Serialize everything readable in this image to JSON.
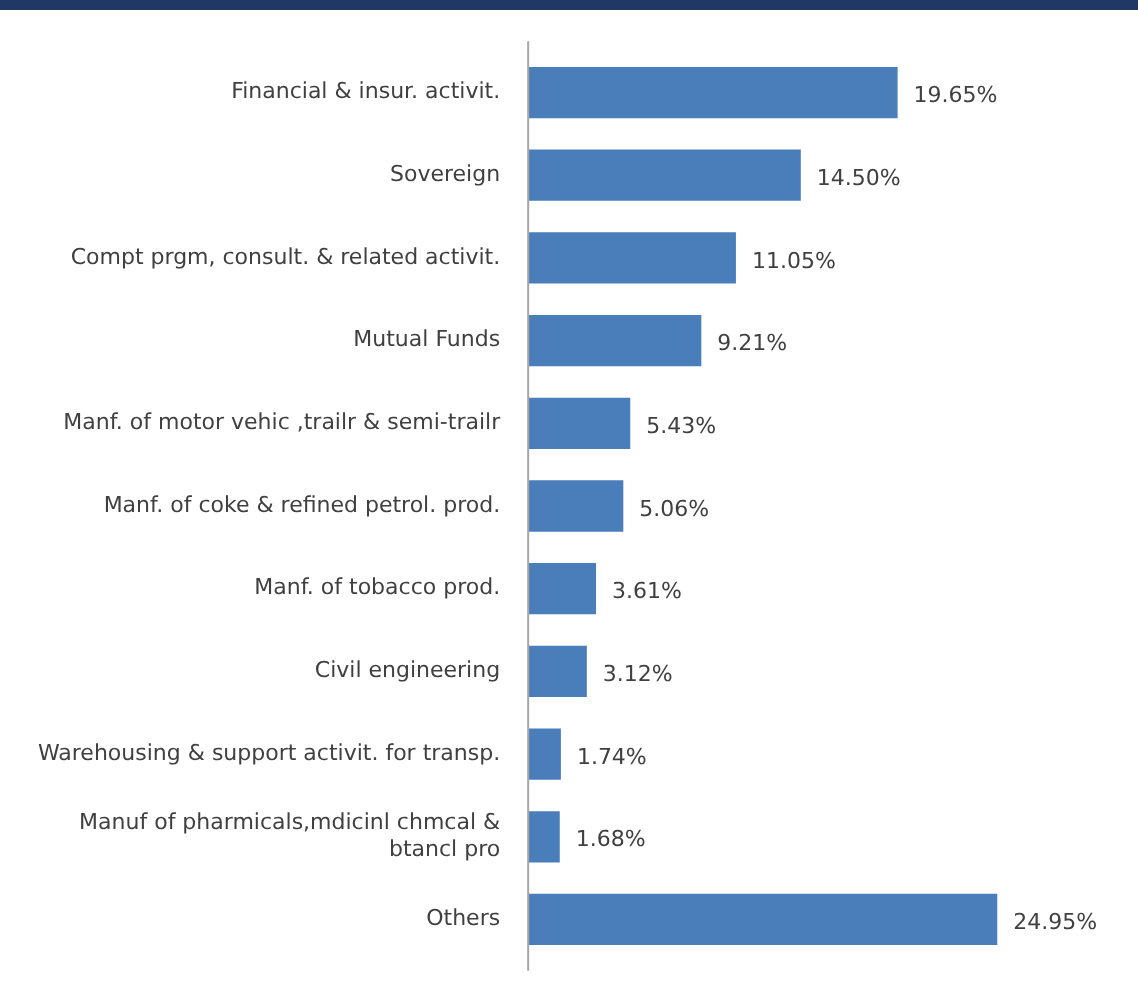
{
  "chart_data": {
    "type": "bar",
    "orientation": "horizontal",
    "categories": [
      "Financial & insur. activit.",
      "Sovereign",
      "Compt prgm, consult. & related activit.",
      "Mutual Funds",
      "Manf. of motor vehic ,trailr & semi-trailr",
      "Manf. of coke & refined petrol. prod.",
      "Manf. of tobacco prod.",
      "Civil engineering",
      "Warehousing & support activit. for transp.",
      "Manuf of pharmicals,mdicinl chmcal & btancl pro",
      "Others"
    ],
    "values": [
      19.65,
      14.5,
      11.05,
      9.21,
      5.43,
      5.06,
      3.61,
      3.12,
      1.74,
      1.68,
      24.95
    ],
    "value_labels": [
      "19.65%",
      "14.50%",
      "11.05%",
      "9.21%",
      "5.43%",
      "5.06%",
      "3.61%",
      "3.12%",
      "1.74%",
      "1.68%",
      "24.95%"
    ],
    "color": "#4a7ebb",
    "grid": false,
    "legend": false
  }
}
